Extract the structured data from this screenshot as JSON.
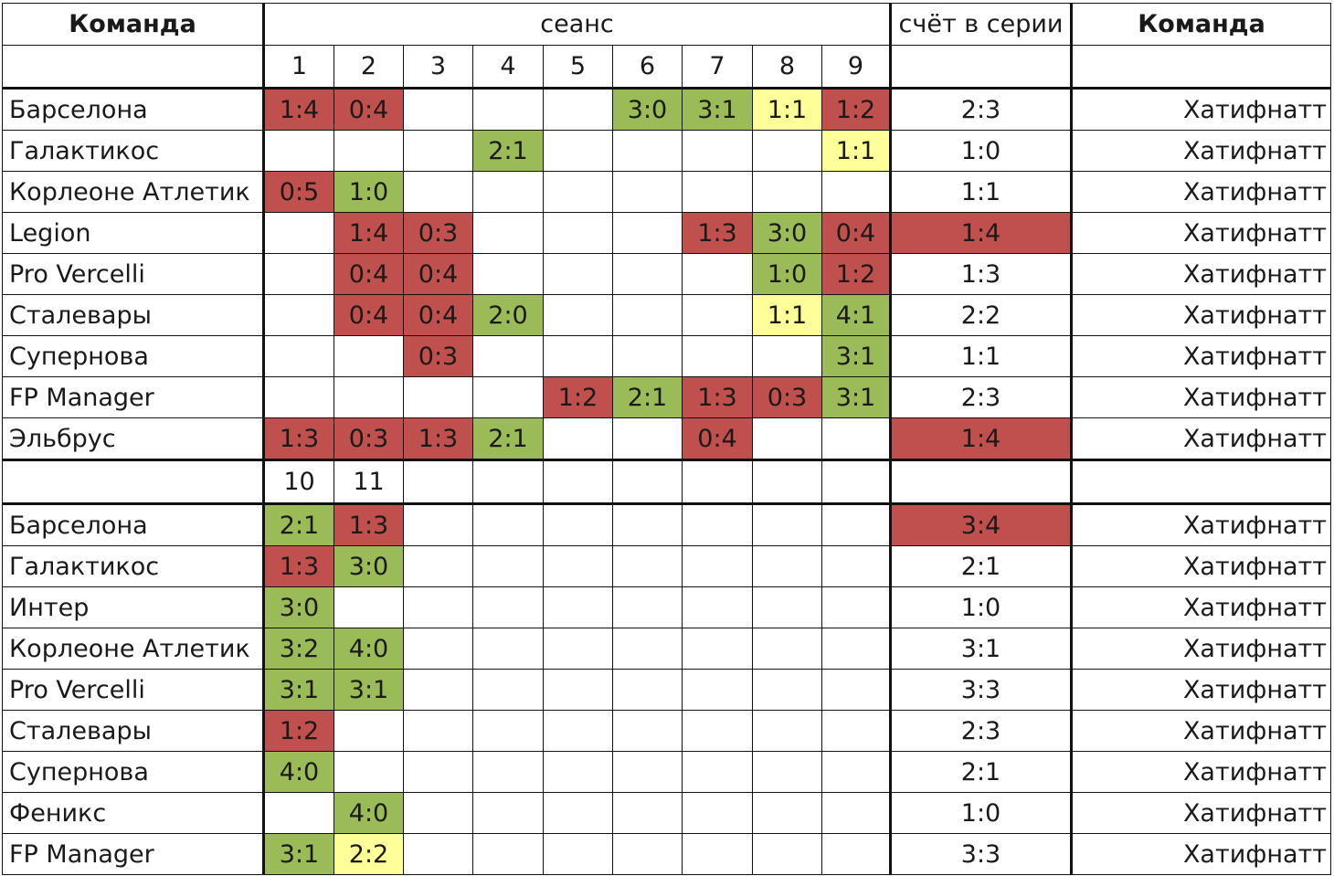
{
  "header": {
    "team_left": "Команда",
    "session": "сеанс",
    "series_score": "счёт в серии",
    "team_right": "Команда"
  },
  "session_numbers_1": [
    "1",
    "2",
    "3",
    "4",
    "5",
    "6",
    "7",
    "8",
    "9"
  ],
  "session_numbers_2": [
    "10",
    "11",
    "",
    "",
    "",
    "",
    "",
    "",
    ""
  ],
  "colors": {
    "loss": "#c0504d",
    "win": "#9bbb59",
    "draw": "#ffff99"
  },
  "block1": [
    {
      "team": "Барселона",
      "cells": [
        [
          "1:4",
          "r"
        ],
        [
          "0:4",
          "r"
        ],
        [
          "",
          ""
        ],
        [
          "",
          ""
        ],
        [
          "",
          ""
        ],
        [
          "3:0",
          "g"
        ],
        [
          "3:1",
          "g"
        ],
        [
          "1:1",
          "y"
        ],
        [
          "1:2",
          "r"
        ]
      ],
      "series": "2:3",
      "series_color": "",
      "opponent": "Хатифнатт"
    },
    {
      "team": "Галактикос",
      "cells": [
        [
          "",
          ""
        ],
        [
          "",
          ""
        ],
        [
          "",
          ""
        ],
        [
          "2:1",
          "g"
        ],
        [
          "",
          ""
        ],
        [
          "",
          ""
        ],
        [
          "",
          ""
        ],
        [
          "",
          ""
        ],
        [
          "1:1",
          "y"
        ]
      ],
      "series": "1:0",
      "series_color": "",
      "opponent": "Хатифнатт"
    },
    {
      "team": "Корлеоне Атлетик",
      "cells": [
        [
          "0:5",
          "r"
        ],
        [
          "1:0",
          "g"
        ],
        [
          "",
          ""
        ],
        [
          "",
          ""
        ],
        [
          "",
          ""
        ],
        [
          "",
          ""
        ],
        [
          "",
          ""
        ],
        [
          "",
          ""
        ],
        [
          "",
          ""
        ]
      ],
      "series": "1:1",
      "series_color": "",
      "opponent": "Хатифнатт"
    },
    {
      "team": "Legion",
      "cells": [
        [
          "",
          ""
        ],
        [
          "1:4",
          "r"
        ],
        [
          "0:3",
          "r"
        ],
        [
          "",
          ""
        ],
        [
          "",
          ""
        ],
        [
          "",
          ""
        ],
        [
          "1:3",
          "r"
        ],
        [
          "3:0",
          "g"
        ],
        [
          "0:4",
          "r"
        ]
      ],
      "series": "1:4",
      "series_color": "r",
      "opponent": "Хатифнатт"
    },
    {
      "team": "Pro Vercelli",
      "cells": [
        [
          "",
          ""
        ],
        [
          "0:4",
          "r"
        ],
        [
          "0:4",
          "r"
        ],
        [
          "",
          ""
        ],
        [
          "",
          ""
        ],
        [
          "",
          ""
        ],
        [
          "",
          ""
        ],
        [
          "1:0",
          "g"
        ],
        [
          "1:2",
          "r"
        ]
      ],
      "series": "1:3",
      "series_color": "",
      "opponent": "Хатифнатт"
    },
    {
      "team": "Сталевары",
      "cells": [
        [
          "",
          ""
        ],
        [
          "0:4",
          "r"
        ],
        [
          "0:4",
          "r"
        ],
        [
          "2:0",
          "g"
        ],
        [
          "",
          ""
        ],
        [
          "",
          ""
        ],
        [
          "",
          ""
        ],
        [
          "1:1",
          "y"
        ],
        [
          "4:1",
          "g"
        ]
      ],
      "series": "2:2",
      "series_color": "",
      "opponent": "Хатифнатт"
    },
    {
      "team": "Супернова",
      "cells": [
        [
          "",
          ""
        ],
        [
          "",
          ""
        ],
        [
          "0:3",
          "r"
        ],
        [
          "",
          ""
        ],
        [
          "",
          ""
        ],
        [
          "",
          ""
        ],
        [
          "",
          ""
        ],
        [
          "",
          ""
        ],
        [
          "3:1",
          "g"
        ]
      ],
      "series": "1:1",
      "series_color": "",
      "opponent": "Хатифнатт"
    },
    {
      "team": "FP Manager",
      "cells": [
        [
          "",
          ""
        ],
        [
          "",
          ""
        ],
        [
          "",
          ""
        ],
        [
          "",
          ""
        ],
        [
          "1:2",
          "r"
        ],
        [
          "2:1",
          "g"
        ],
        [
          "1:3",
          "r"
        ],
        [
          "0:3",
          "r"
        ],
        [
          "3:1",
          "g"
        ]
      ],
      "series": "2:3",
      "series_color": "",
      "opponent": "Хатифнатт"
    },
    {
      "team": "Эльбрус",
      "cells": [
        [
          "1:3",
          "r"
        ],
        [
          "0:3",
          "r"
        ],
        [
          "1:3",
          "r"
        ],
        [
          "2:1",
          "g"
        ],
        [
          "",
          ""
        ],
        [
          "",
          ""
        ],
        [
          "0:4",
          "r"
        ],
        [
          "",
          ""
        ],
        [
          "",
          ""
        ]
      ],
      "series": "1:4",
      "series_color": "r",
      "opponent": "Хатифнатт"
    }
  ],
  "block2": [
    {
      "team": "Барселона",
      "cells": [
        [
          "2:1",
          "g"
        ],
        [
          "1:3",
          "r"
        ],
        [
          "",
          ""
        ],
        [
          "",
          ""
        ],
        [
          "",
          ""
        ],
        [
          "",
          ""
        ],
        [
          "",
          ""
        ],
        [
          "",
          ""
        ],
        [
          "",
          ""
        ]
      ],
      "series": "3:4",
      "series_color": "r",
      "opponent": "Хатифнатт"
    },
    {
      "team": "Галактикос",
      "cells": [
        [
          "1:3",
          "r"
        ],
        [
          "3:0",
          "g"
        ],
        [
          "",
          ""
        ],
        [
          "",
          ""
        ],
        [
          "",
          ""
        ],
        [
          "",
          ""
        ],
        [
          "",
          ""
        ],
        [
          "",
          ""
        ],
        [
          "",
          ""
        ]
      ],
      "series": "2:1",
      "series_color": "",
      "opponent": "Хатифнатт"
    },
    {
      "team": "Интер",
      "cells": [
        [
          "3:0",
          "g"
        ],
        [
          "",
          ""
        ],
        [
          "",
          ""
        ],
        [
          "",
          ""
        ],
        [
          "",
          ""
        ],
        [
          "",
          ""
        ],
        [
          "",
          ""
        ],
        [
          "",
          ""
        ],
        [
          "",
          ""
        ]
      ],
      "series": "1:0",
      "series_color": "",
      "opponent": "Хатифнатт"
    },
    {
      "team": "Корлеоне Атлетик",
      "cells": [
        [
          "3:2",
          "g"
        ],
        [
          "4:0",
          "g"
        ],
        [
          "",
          ""
        ],
        [
          "",
          ""
        ],
        [
          "",
          ""
        ],
        [
          "",
          ""
        ],
        [
          "",
          ""
        ],
        [
          "",
          ""
        ],
        [
          "",
          ""
        ]
      ],
      "series": "3:1",
      "series_color": "",
      "opponent": "Хатифнатт"
    },
    {
      "team": "Pro Vercelli",
      "cells": [
        [
          "3:1",
          "g"
        ],
        [
          "3:1",
          "g"
        ],
        [
          "",
          ""
        ],
        [
          "",
          ""
        ],
        [
          "",
          ""
        ],
        [
          "",
          ""
        ],
        [
          "",
          ""
        ],
        [
          "",
          ""
        ],
        [
          "",
          ""
        ]
      ],
      "series": "3:3",
      "series_color": "",
      "opponent": "Хатифнатт"
    },
    {
      "team": "Сталевары",
      "cells": [
        [
          "1:2",
          "r"
        ],
        [
          "",
          ""
        ],
        [
          "",
          ""
        ],
        [
          "",
          ""
        ],
        [
          "",
          ""
        ],
        [
          "",
          ""
        ],
        [
          "",
          ""
        ],
        [
          "",
          ""
        ],
        [
          "",
          ""
        ]
      ],
      "series": "2:3",
      "series_color": "",
      "opponent": "Хатифнатт"
    },
    {
      "team": "Супернова",
      "cells": [
        [
          "4:0",
          "g"
        ],
        [
          "",
          ""
        ],
        [
          "",
          ""
        ],
        [
          "",
          ""
        ],
        [
          "",
          ""
        ],
        [
          "",
          ""
        ],
        [
          "",
          ""
        ],
        [
          "",
          ""
        ],
        [
          "",
          ""
        ]
      ],
      "series": "2:1",
      "series_color": "",
      "opponent": "Хатифнатт"
    },
    {
      "team": "Феникс",
      "cells": [
        [
          "",
          ""
        ],
        [
          "4:0",
          "g"
        ],
        [
          "",
          ""
        ],
        [
          "",
          ""
        ],
        [
          "",
          ""
        ],
        [
          "",
          ""
        ],
        [
          "",
          ""
        ],
        [
          "",
          ""
        ],
        [
          "",
          ""
        ]
      ],
      "series": "1:0",
      "series_color": "",
      "opponent": "Хатифнатт"
    },
    {
      "team": "FP Manager",
      "cells": [
        [
          "3:1",
          "g"
        ],
        [
          "2:2",
          "y"
        ],
        [
          "",
          ""
        ],
        [
          "",
          ""
        ],
        [
          "",
          ""
        ],
        [
          "",
          ""
        ],
        [
          "",
          ""
        ],
        [
          "",
          ""
        ],
        [
          "",
          ""
        ]
      ],
      "series": "3:3",
      "series_color": "",
      "opponent": "Хатифнатт"
    }
  ]
}
